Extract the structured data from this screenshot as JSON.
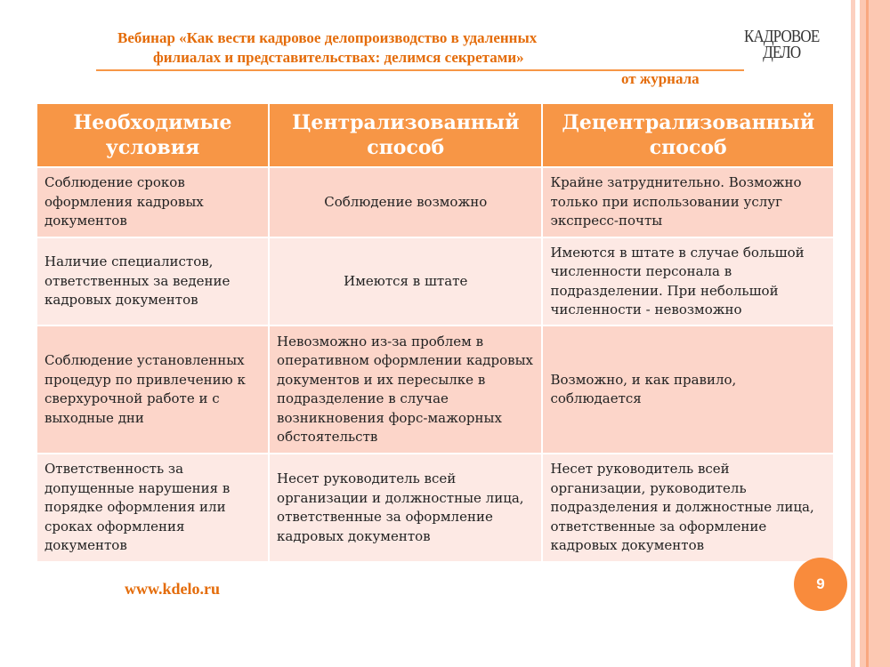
{
  "header": {
    "title_line1": "Вебинар «Как вести кадровое делопроизводство в удаленных",
    "title_line2": "филиалах и представительствах: делимся секретами»",
    "from": "от журнала",
    "logo_line1": "КАДРОВОЕ",
    "logo_line2": "ДЕЛО"
  },
  "table": {
    "columns": [
      "Необходимые условия",
      "Централизованный способ",
      "Децентрализованный способ"
    ],
    "rows": [
      [
        "Соблюдение сроков оформления кадровых документов",
        "Соблюдение возможно",
        "Крайне затруднительно. Возможно только при использовании услуг экспресс-почты"
      ],
      [
        "Наличие специалистов, ответственных за ведение кадровых документов",
        "Имеются в штате",
        "Имеются в штате в случае большой численности персонала в подразделении. При небольшой численности - невозможно"
      ],
      [
        "Соблюдение установленных процедур по привлечению к сверхурочной работе и с выходные дни",
        "Невозможно из-за проблем в оперативном оформлении кадровых документов и их пересылке в подразделение в случае возникновения форс-мажорных обстоятельств",
        "Возможно, и как правило, соблюдается"
      ],
      [
        "Ответственность за допущенные нарушения в порядке оформления или сроках оформления документов",
        "Несет руководитель всей организации и должностные лица, ответственные за оформление кадровых документов",
        "Несет руководитель всей организации, руководитель подразделения и должностные лица, ответственные за оформление кадровых документов"
      ]
    ]
  },
  "footer": {
    "url": "www.kdelo.ru",
    "page_number": "9"
  },
  "colors": {
    "accent": "#f79646",
    "title": "#e46c0a",
    "row_odd": "#fcd5c9",
    "row_even": "#fde9e4"
  }
}
